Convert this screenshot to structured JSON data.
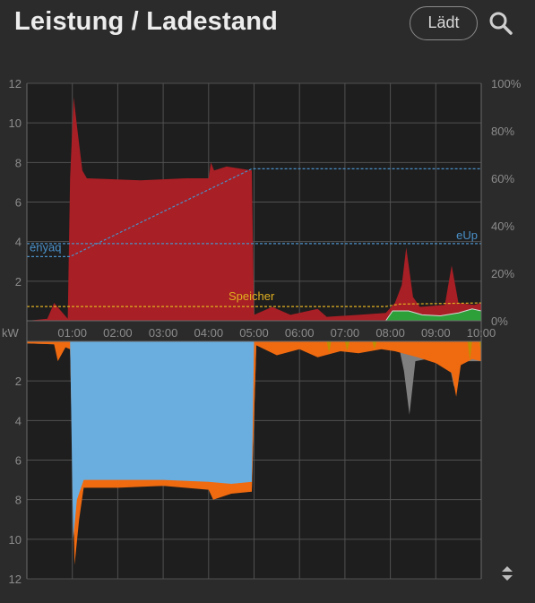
{
  "header": {
    "title": "Leistung / Ladestand",
    "status_button": "Lädt",
    "search_icon": "search-icon"
  },
  "scroll_icon": "sort-updown-icon",
  "chart_data": [
    {
      "type": "area",
      "panel": "top",
      "x_ticks": [
        "01:00",
        "02:00",
        "03:00",
        "04:00",
        "05:00",
        "06:00",
        "07:00",
        "08:00",
        "09:00",
        "10:00"
      ],
      "y_left_ticks": [
        "12",
        "10",
        "8",
        "6",
        "4",
        "2"
      ],
      "y_left_unit": "kW",
      "ylim_left": [
        0,
        12
      ],
      "y_right_ticks": [
        "100%",
        "80%",
        "60%",
        "40%",
        "20%",
        "0%"
      ],
      "ylim_right": [
        0,
        100
      ],
      "xlim_hours": [
        0,
        10
      ],
      "grid": true,
      "series": [
        {
          "name": "enyaq",
          "kind": "soc_line",
          "color": "#4a90c8",
          "points": [
            [
              0,
              27
            ],
            [
              0.95,
              27
            ],
            [
              4.95,
              64
            ],
            [
              10,
              64
            ]
          ]
        },
        {
          "name": "eUp",
          "kind": "soc_line",
          "color": "#4a90c8",
          "points": [
            [
              0,
              32.5
            ],
            [
              10,
              32.5
            ]
          ]
        },
        {
          "name": "Speicher",
          "kind": "soc_line",
          "color": "#e0b020",
          "points": [
            [
              0,
              6
            ],
            [
              5,
              6
            ],
            [
              6,
              6
            ],
            [
              7.5,
              6
            ],
            [
              7.9,
              6
            ],
            [
              8.2,
              7
            ],
            [
              10,
              7.5
            ]
          ]
        },
        {
          "kind": "area",
          "color": "#a81f25",
          "points": [
            [
              0,
              0
            ],
            [
              0.45,
              0.1
            ],
            [
              0.6,
              0.9
            ],
            [
              0.9,
              0.1
            ],
            [
              0.95,
              7.2
            ],
            [
              1.03,
              11.3
            ],
            [
              1.12,
              9.5
            ],
            [
              1.22,
              7.6
            ],
            [
              1.32,
              7.2
            ],
            [
              2.5,
              7.1
            ],
            [
              3.5,
              7.2
            ],
            [
              4.0,
              7.2
            ],
            [
              4.05,
              8.0
            ],
            [
              4.12,
              7.6
            ],
            [
              4.4,
              7.8
            ],
            [
              4.95,
              7.6
            ],
            [
              5.0,
              0.3
            ],
            [
              5.4,
              0.7
            ],
            [
              5.8,
              0.3
            ],
            [
              6.4,
              0.6
            ],
            [
              6.6,
              0.2
            ],
            [
              7.3,
              0.3
            ],
            [
              7.9,
              0.4
            ],
            [
              8.1,
              0.9
            ],
            [
              8.25,
              1.8
            ],
            [
              8.35,
              3.7
            ],
            [
              8.5,
              1.2
            ],
            [
              8.65,
              0.7
            ],
            [
              9.2,
              0.8
            ],
            [
              9.35,
              2.8
            ],
            [
              9.5,
              0.9
            ],
            [
              9.85,
              0.8
            ],
            [
              10,
              0.9
            ]
          ]
        },
        {
          "kind": "area",
          "color": "#2ea03a",
          "points": [
            [
              7.9,
              0
            ],
            [
              8.05,
              0.5
            ],
            [
              8.4,
              0.5
            ],
            [
              8.7,
              0.3
            ],
            [
              9.1,
              0.25
            ],
            [
              9.5,
              0.4
            ],
            [
              9.8,
              0.6
            ],
            [
              10,
              0.5
            ]
          ]
        }
      ],
      "annotations": [
        "enyaq",
        "eUp",
        "Speicher"
      ]
    },
    {
      "type": "area",
      "panel": "bottom",
      "y_ticks": [
        "2",
        "4",
        "6",
        "8",
        "10",
        "12"
      ],
      "ylim": [
        0,
        12
      ],
      "direction": "down",
      "grid": true,
      "series": [
        {
          "kind": "area",
          "color": "#7f7f7f",
          "points": [
            [
              0,
              0.1
            ],
            [
              0.6,
              0.15
            ],
            [
              0.7,
              0.8
            ],
            [
              0.85,
              0.2
            ],
            [
              0.95,
              0.3
            ],
            [
              1.05,
              10.5
            ],
            [
              1.15,
              8.5
            ],
            [
              1.25,
              7.3
            ],
            [
              2,
              7.3
            ],
            [
              3,
              7.3
            ],
            [
              4,
              7.4
            ],
            [
              4.1,
              7.8
            ],
            [
              4.5,
              7.5
            ],
            [
              4.95,
              7.5
            ],
            [
              5.05,
              0.2
            ],
            [
              5.5,
              0.5
            ],
            [
              6,
              0.3
            ],
            [
              6.5,
              0.4
            ],
            [
              7,
              0.3
            ],
            [
              8.2,
              0.4
            ],
            [
              8.3,
              1.5
            ],
            [
              8.42,
              3.7
            ],
            [
              8.55,
              1.0
            ],
            [
              9,
              0.8
            ],
            [
              9.3,
              1.2
            ],
            [
              9.4,
              2.3
            ],
            [
              9.55,
              1.0
            ],
            [
              10,
              1.0
            ]
          ]
        },
        {
          "kind": "area",
          "color": "#f06a10",
          "points": [
            [
              0,
              0.1
            ],
            [
              0.6,
              0.15
            ],
            [
              0.68,
              1.0
            ],
            [
              0.85,
              0.3
            ],
            [
              0.95,
              0.4
            ],
            [
              1.05,
              11.3
            ],
            [
              1.15,
              9.0
            ],
            [
              1.25,
              7.4
            ],
            [
              2,
              7.4
            ],
            [
              3,
              7.3
            ],
            [
              4,
              7.5
            ],
            [
              4.1,
              8.0
            ],
            [
              4.5,
              7.7
            ],
            [
              4.95,
              7.6
            ],
            [
              5.05,
              0.2
            ],
            [
              5.5,
              0.7
            ],
            [
              6,
              0.4
            ],
            [
              6.4,
              0.8
            ],
            [
              6.9,
              0.5
            ],
            [
              7.3,
              0.6
            ],
            [
              7.8,
              0.4
            ],
            [
              8.1,
              0.5
            ],
            [
              8.6,
              0.8
            ],
            [
              9.0,
              1.1
            ],
            [
              9.35,
              1.6
            ],
            [
              9.45,
              2.8
            ],
            [
              9.55,
              1.2
            ],
            [
              9.8,
              0.9
            ],
            [
              10,
              1.0
            ]
          ]
        },
        {
          "kind": "area",
          "color": "#6aaee0",
          "points": [
            [
              0,
              0
            ],
            [
              0.95,
              0
            ],
            [
              1.02,
              10.0
            ],
            [
              1.1,
              8.0
            ],
            [
              1.25,
              7.0
            ],
            [
              2,
              7.0
            ],
            [
              3,
              7.0
            ],
            [
              4,
              7.1
            ],
            [
              4.5,
              7.2
            ],
            [
              4.95,
              7.1
            ],
            [
              5.0,
              0
            ]
          ]
        },
        {
          "kind": "area",
          "color": "#c09000",
          "points": [
            [
              6.6,
              0
            ],
            [
              6.65,
              0.6
            ],
            [
              6.7,
              0
            ],
            [
              7.0,
              0
            ],
            [
              7.05,
              0.5
            ],
            [
              7.1,
              0
            ],
            [
              7.6,
              0
            ],
            [
              7.65,
              0.4
            ],
            [
              7.7,
              0
            ],
            [
              9.7,
              0
            ],
            [
              9.75,
              1.0
            ],
            [
              9.8,
              0
            ],
            [
              9.95,
              0
            ],
            [
              10,
              0.5
            ]
          ]
        }
      ]
    }
  ]
}
